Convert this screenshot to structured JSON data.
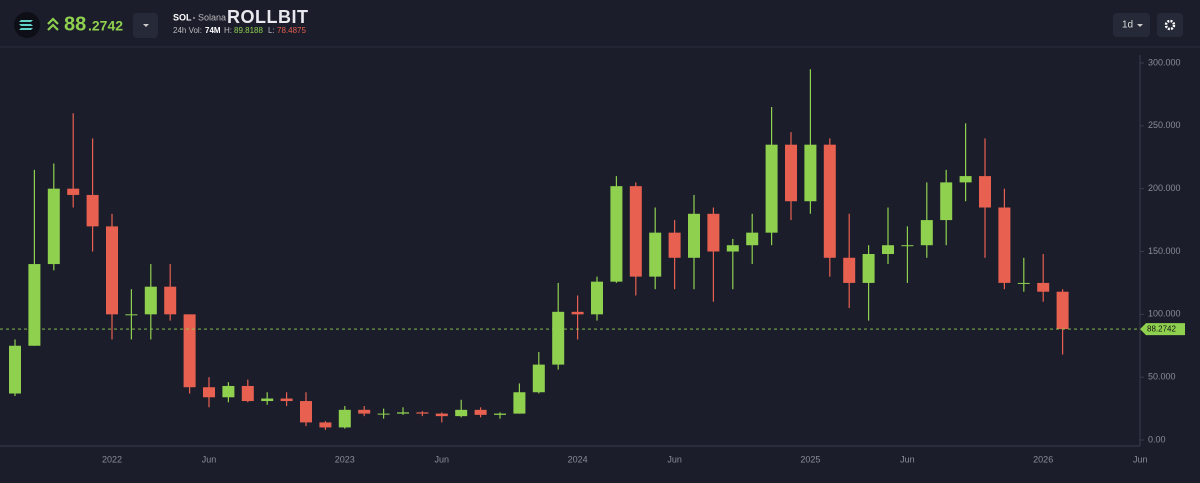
{
  "header": {
    "price_int": "88",
    "price_dec": ".2742",
    "symbol": "SOL",
    "name": "Solana",
    "brand": "ROLLBIT",
    "vol_label": "24h Vol:",
    "vol": "74M",
    "high_label": "H:",
    "high": "89.8188",
    "low_label": "L:",
    "low": "78.4875",
    "interval": "1d"
  },
  "chart_data": {
    "type": "candlestick",
    "categories": [
      null,
      null,
      null,
      null,
      null,
      "2022",
      null,
      null,
      null,
      null,
      "Jun",
      null,
      null,
      null,
      null,
      null,
      null,
      "2023",
      null,
      null,
      null,
      null,
      "Jun",
      null,
      null,
      null,
      null,
      null,
      null,
      "2024",
      null,
      null,
      null,
      null,
      "Jun",
      null,
      null,
      null,
      null,
      null,
      null,
      "2025",
      null,
      null,
      null,
      null,
      "Jun",
      null,
      null,
      null,
      null,
      null,
      null,
      "2026",
      null,
      null,
      null,
      null,
      "Jun"
    ],
    "open": [
      37,
      75,
      140,
      200,
      195,
      170,
      100,
      100,
      122,
      100,
      42,
      34,
      43,
      31,
      33,
      31,
      14,
      10,
      24,
      21,
      21,
      22,
      21,
      19,
      24,
      20,
      21,
      38,
      60,
      102,
      100,
      126,
      202,
      130,
      165,
      145,
      180,
      150,
      155,
      165,
      235,
      190,
      235,
      145,
      125,
      148,
      155,
      155,
      175,
      205,
      210,
      185,
      125,
      125,
      118,
      null,
      null,
      null,
      null
    ],
    "high": [
      80,
      215,
      220,
      260,
      240,
      180,
      120,
      140,
      140,
      100,
      50,
      46,
      48,
      38,
      38,
      38,
      15,
      27,
      27,
      25,
      26,
      23,
      22,
      32,
      26,
      22,
      45,
      70,
      125,
      115,
      130,
      210,
      205,
      185,
      175,
      195,
      185,
      160,
      180,
      265,
      245,
      295,
      240,
      180,
      155,
      185,
      170,
      205,
      215,
      252,
      240,
      200,
      145,
      148,
      120,
      null,
      null,
      null,
      null
    ],
    "low": [
      35,
      75,
      135,
      185,
      150,
      80,
      80,
      80,
      95,
      37,
      26,
      30,
      30,
      28,
      27,
      11,
      8,
      9,
      19,
      17,
      20,
      19,
      14,
      18,
      18,
      17,
      21,
      37,
      56,
      80,
      95,
      125,
      115,
      120,
      120,
      120,
      110,
      120,
      140,
      155,
      175,
      180,
      130,
      105,
      95,
      140,
      125,
      145,
      155,
      190,
      145,
      120,
      118,
      110,
      68,
      null,
      null,
      null,
      null
    ],
    "close": [
      75,
      140,
      200,
      195,
      170,
      100,
      100,
      122,
      100,
      42,
      34,
      43,
      31,
      33,
      31,
      14,
      10,
      24,
      21,
      21,
      22,
      21,
      19,
      24,
      20,
      21,
      38,
      60,
      102,
      100,
      126,
      202,
      130,
      165,
      145,
      180,
      150,
      155,
      165,
      235,
      190,
      235,
      145,
      125,
      148,
      155,
      155,
      175,
      205,
      210,
      185,
      125,
      125,
      118,
      88.2742,
      null,
      null,
      null,
      null
    ],
    "up_color": "#8fd14f",
    "down_color": "#e8604f",
    "last_price": 88.2742,
    "ylim": [
      0,
      300
    ],
    "yticks": [
      {
        "value": 0,
        "label": "0.00"
      },
      {
        "value": 50,
        "label": "50.000"
      },
      {
        "value": 100,
        "label": "100.000"
      },
      {
        "value": 150,
        "label": "150.000"
      },
      {
        "value": 200,
        "label": "200.000"
      },
      {
        "value": 250,
        "label": "250.000"
      },
      {
        "value": 300,
        "label": "300.000"
      }
    ]
  }
}
